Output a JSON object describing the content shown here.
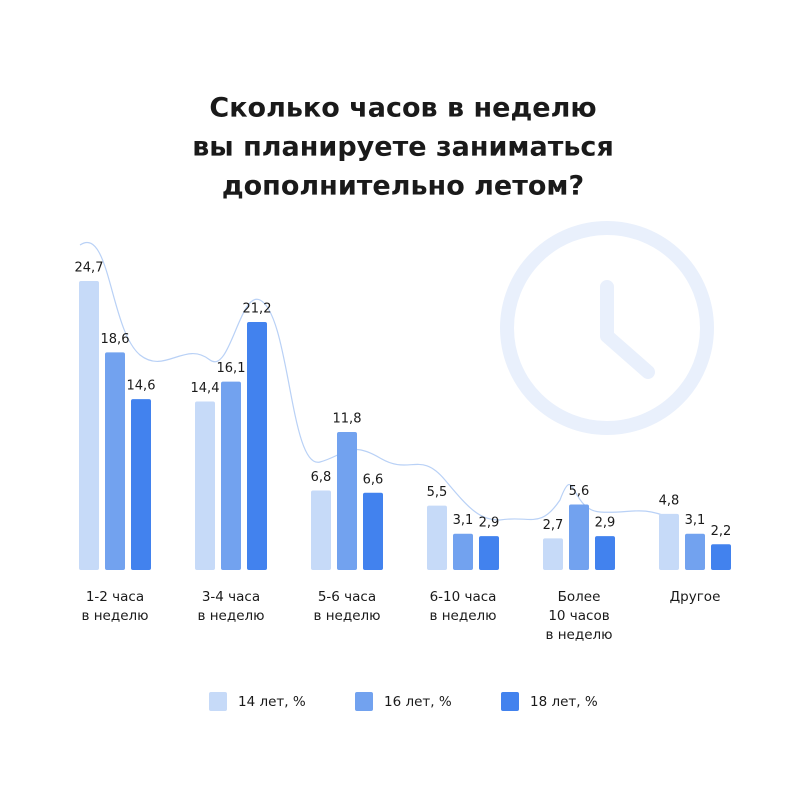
{
  "chart_data": {
    "type": "bar",
    "title": [
      "Сколько часов в неделю",
      "вы планируете заниматься",
      "дополнительно летом?"
    ],
    "categories": [
      [
        "1-2 часа",
        "в неделю"
      ],
      [
        "3-4 часа",
        "в неделю"
      ],
      [
        "5-6 часа",
        "в неделю"
      ],
      [
        "6-10 часа",
        "в неделю"
      ],
      [
        "Более",
        "10 часов",
        "в неделю"
      ],
      [
        "Другое"
      ]
    ],
    "series": [
      {
        "name": "14 лет, %",
        "color": "#c6daf8",
        "values": [
          24.7,
          14.4,
          6.8,
          5.5,
          2.7,
          4.8
        ],
        "value_labels": [
          "24,7",
          "14,4",
          "6,8",
          "5,5",
          "2,7",
          "4,8"
        ]
      },
      {
        "name": "16 лет, %",
        "color": "#72a2ef",
        "values": [
          18.6,
          16.1,
          11.8,
          3.1,
          5.6,
          3.1
        ],
        "value_labels": [
          "18,6",
          "16,1",
          "11,8",
          "3,1",
          "5,6",
          "3,1"
        ]
      },
      {
        "name": "18 лет, %",
        "color": "#4282ee",
        "values": [
          14.6,
          21.2,
          6.6,
          2.9,
          2.9,
          2.2
        ],
        "value_labels": [
          "14,6",
          "21,2",
          "6,6",
          "2,9",
          "2,9",
          "2,2"
        ]
      }
    ]
  }
}
